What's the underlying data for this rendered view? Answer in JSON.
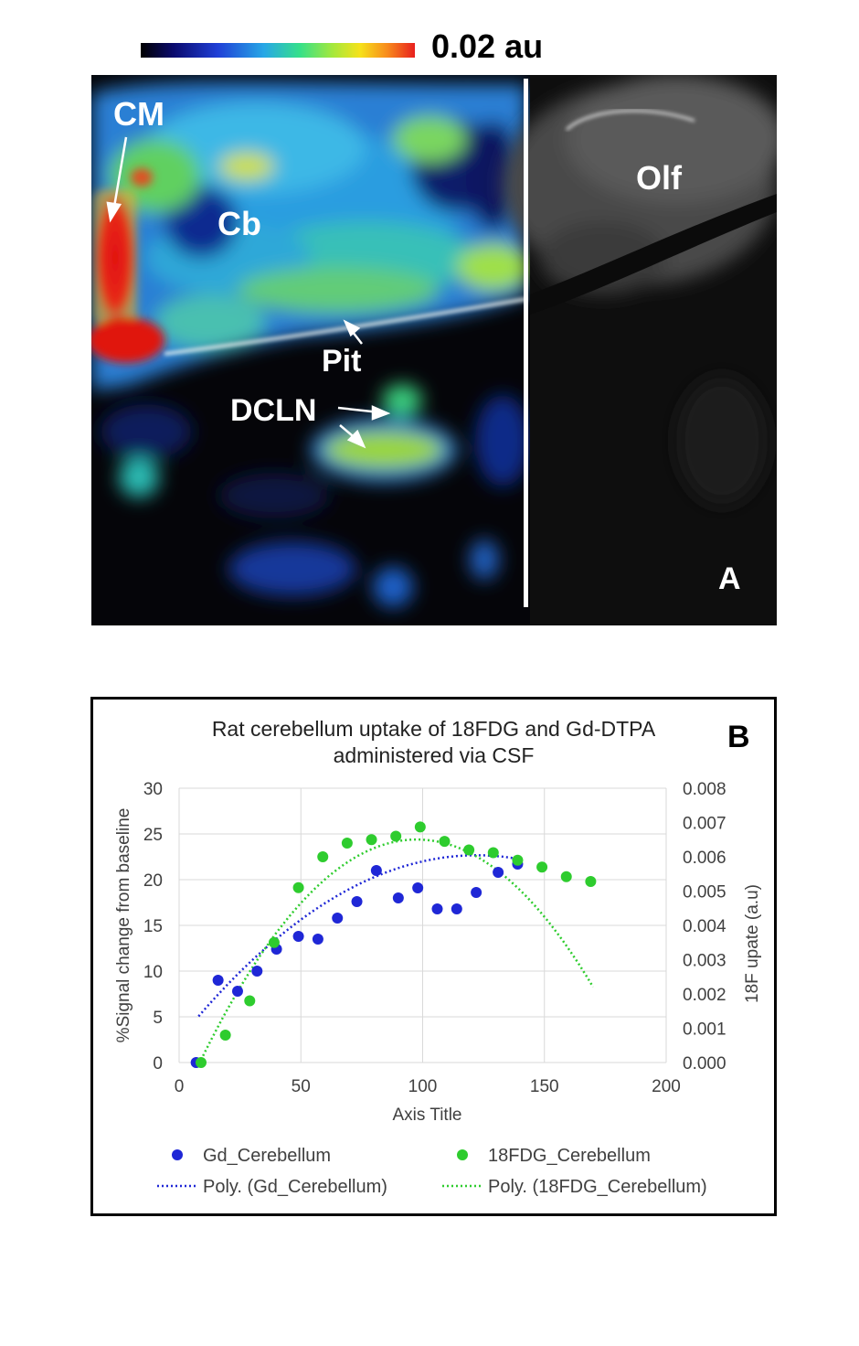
{
  "colorbar": {
    "label": "0.02 au"
  },
  "panel_a": {
    "labels": {
      "cm": "CM",
      "cb": "Cb",
      "pit": "Pit",
      "dcln": "DCLN",
      "olf": "Olf",
      "panel": "A"
    }
  },
  "panel_b": {
    "letter": "B"
  },
  "chart_data": {
    "type": "scatter",
    "title": "Rat cerebellum uptake of 18FDG and Gd-DTPA administered via CSF",
    "title_lines": [
      "Rat cerebellum uptake of 18FDG and Gd-DTPA",
      "administered via CSF"
    ],
    "xlabel": "Axis Title",
    "ylabel": "%Signal change from baseline",
    "y2label": "18F upate (a.u)",
    "xlim": [
      0,
      200
    ],
    "ylim": [
      0,
      30
    ],
    "y2lim": [
      0,
      0.008
    ],
    "x_ticks": [
      "0",
      "50",
      "100",
      "150",
      "200"
    ],
    "y_ticks": [
      "0",
      "5",
      "10",
      "15",
      "20",
      "25",
      "30"
    ],
    "y2_ticks": [
      "0.000",
      "0.001",
      "0.002",
      "0.003",
      "0.004",
      "0.005",
      "0.006",
      "0.007",
      "0.008"
    ],
    "grid": true,
    "legend_position": "bottom",
    "series": [
      {
        "name": "Gd_Cerebellum",
        "axis": "left",
        "color": "#1f27d6",
        "points": [
          [
            7,
            0
          ],
          [
            16,
            9
          ],
          [
            24,
            7.8
          ],
          [
            32,
            10
          ],
          [
            40,
            12.4
          ],
          [
            49,
            13.8
          ],
          [
            57,
            13.5
          ],
          [
            65,
            15.8
          ],
          [
            73,
            17.6
          ],
          [
            81,
            21
          ],
          [
            90,
            18
          ],
          [
            98,
            19.1
          ],
          [
            106,
            16.8
          ],
          [
            114,
            16.8
          ],
          [
            122,
            18.6
          ],
          [
            131,
            20.8
          ],
          [
            139,
            21.7
          ]
        ]
      },
      {
        "name": "18FDG_Cerebellum",
        "axis": "right",
        "color": "#2ecc2e",
        "points": [
          [
            9,
            0
          ],
          [
            19,
            0.0008
          ],
          [
            29,
            0.0018
          ],
          [
            39,
            0.0035
          ],
          [
            49,
            0.0051
          ],
          [
            59,
            0.006
          ],
          [
            69,
            0.0064
          ],
          [
            79,
            0.0065
          ],
          [
            89,
            0.0066
          ],
          [
            99,
            0.00687
          ],
          [
            109,
            0.00645
          ],
          [
            119,
            0.0062
          ],
          [
            129,
            0.00612
          ],
          [
            139,
            0.0059
          ],
          [
            149,
            0.0057
          ],
          [
            159,
            0.00542
          ],
          [
            169,
            0.00528
          ]
        ]
      }
    ],
    "trendlines": [
      {
        "name": "Poly. (Gd_Cerebellum)",
        "axis": "left",
        "color": "#1f27d6",
        "x_range": [
          8,
          140
        ],
        "coeffs": [
          2.5,
          0.33,
          -0.00135
        ]
      },
      {
        "name": "Poly. (18FDG_Cerebellum)",
        "axis": "right",
        "color": "#2ecc2e",
        "x_range": [
          9,
          170
        ],
        "coeffs": [
          -0.0013,
          0.00016,
          -8.2e-07
        ]
      }
    ]
  }
}
